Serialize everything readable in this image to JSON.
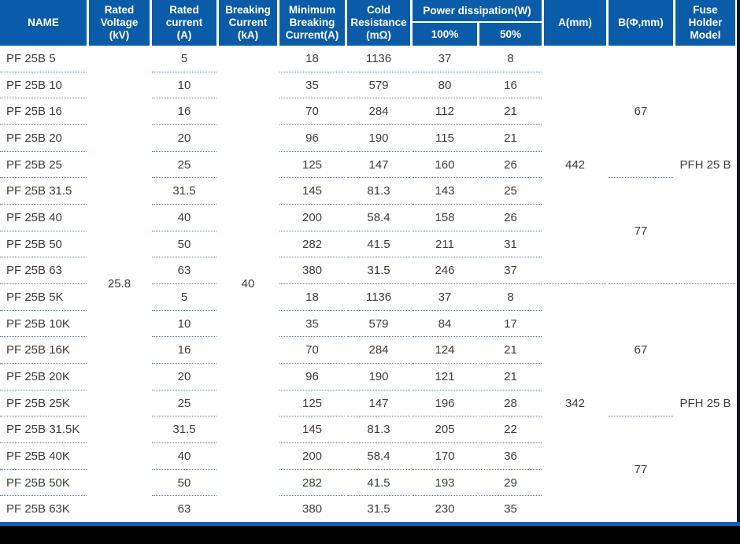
{
  "colors": {
    "header_bg": "#0b5ca8",
    "row_divider": "#4e86c6",
    "body_text": "#3d3d3d",
    "header_text": "#ffffff",
    "bottom_bar": "#0d61bb",
    "right_edge": "#0c1220",
    "footer_bg": "#000000"
  },
  "table": {
    "headers": {
      "name": "NAME",
      "rated_voltage": "Rated\nVoltage\n(kV)",
      "rated_current": "Rated\ncurrent\n(A)",
      "breaking_current": "Breaking\nCurrent\n(kA)",
      "min_breaking_current": "Minimum\nBreaking\nCurrent(A)",
      "cold_resistance": "Cold\nResistance\n(mΩ)",
      "power_dissipation": "Power dissipation(W)",
      "power_100": "100%",
      "power_50": "50%",
      "a_mm": "A(mm)",
      "b_mm": "B(Φ,mm)",
      "fuse_holder": "Fuse\nHolder\nModel"
    },
    "merged": {
      "rated_voltage": "25.8",
      "breaking_current": "40",
      "a": [
        "442",
        "342"
      ],
      "b": [
        "67",
        "77",
        "67",
        "77"
      ],
      "fuse": [
        "PFH 25 B",
        "PFH 25 B"
      ]
    },
    "rows": [
      {
        "name": "PF 25B 5",
        "current": "5",
        "min_break": "18",
        "cold": "1136",
        "p100": "37",
        "p50": "8"
      },
      {
        "name": "PF 25B 10",
        "current": "10",
        "min_break": "35",
        "cold": "579",
        "p100": "80",
        "p50": "16"
      },
      {
        "name": "PF 25B 16",
        "current": "16",
        "min_break": "70",
        "cold": "284",
        "p100": "112",
        "p50": "21"
      },
      {
        "name": "PF 25B 20",
        "current": "20",
        "min_break": "96",
        "cold": "190",
        "p100": "115",
        "p50": "21"
      },
      {
        "name": "PF 25B 25",
        "current": "25",
        "min_break": "125",
        "cold": "147",
        "p100": "160",
        "p50": "26"
      },
      {
        "name": "PF 25B 31.5",
        "current": "31.5",
        "min_break": "145",
        "cold": "81.3",
        "p100": "143",
        "p50": "25"
      },
      {
        "name": "PF 25B 40",
        "current": "40",
        "min_break": "200",
        "cold": "58.4",
        "p100": "158",
        "p50": "26"
      },
      {
        "name": "PF 25B 50",
        "current": "50",
        "min_break": "282",
        "cold": "41.5",
        "p100": "211",
        "p50": "31"
      },
      {
        "name": "PF 25B 63",
        "current": "63",
        "min_break": "380",
        "cold": "31.5",
        "p100": "246",
        "p50": "37"
      },
      {
        "name": "PF 25B 5K",
        "current": "5",
        "min_break": "18",
        "cold": "1136",
        "p100": "37",
        "p50": "8"
      },
      {
        "name": "PF 25B 10K",
        "current": "10",
        "min_break": "35",
        "cold": "579",
        "p100": "84",
        "p50": "17"
      },
      {
        "name": "PF 25B 16K",
        "current": "16",
        "min_break": "70",
        "cold": "284",
        "p100": "124",
        "p50": "21"
      },
      {
        "name": "PF 25B 20K",
        "current": "20",
        "min_break": "96",
        "cold": "190",
        "p100": "121",
        "p50": "21"
      },
      {
        "name": "PF 25B 25K",
        "current": "25",
        "min_break": "125",
        "cold": "147",
        "p100": "196",
        "p50": "28"
      },
      {
        "name": "PF 25B 31.5K",
        "current": "31.5",
        "min_break": "145",
        "cold": "81.3",
        "p100": "205",
        "p50": "22"
      },
      {
        "name": "PF 25B 40K",
        "current": "40",
        "min_break": "200",
        "cold": "58.4",
        "p100": "170",
        "p50": "36"
      },
      {
        "name": "PF 25B 50K",
        "current": "50",
        "min_break": "282",
        "cold": "41.5",
        "p100": "193",
        "p50": "29"
      },
      {
        "name": "PF 25B 63K",
        "current": "63",
        "min_break": "380",
        "cold": "31.5",
        "p100": "230",
        "p50": "35"
      }
    ]
  }
}
